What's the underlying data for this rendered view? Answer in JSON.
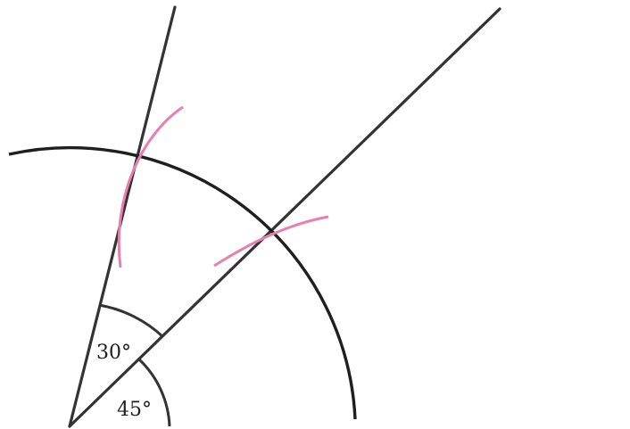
{
  "angle_labels": {
    "upper": "30°",
    "lower": "45°"
  },
  "colors": {
    "background": "#ffffff",
    "line": "#333333",
    "arc": "#1f1f1f",
    "construction_arc": "#e87fb0"
  }
}
